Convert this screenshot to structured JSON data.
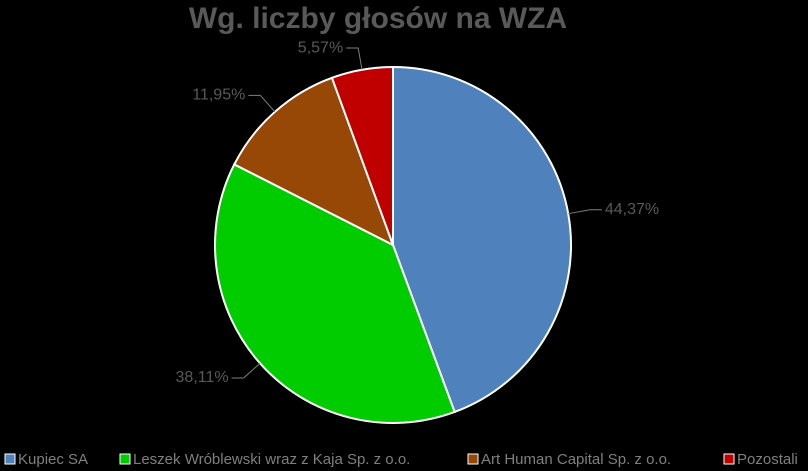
{
  "chart_data": {
    "type": "pie",
    "title": "Wg. liczby głosów na WZA",
    "categories": [
      "Kupiec SA",
      "Leszek Wróblewski wraz z Kaja Sp. z o.o.",
      "Art Human Capital Sp. z o.o.",
      "Pozostali"
    ],
    "values": [
      44.37,
      38.11,
      11.95,
      5.57
    ],
    "value_labels": [
      "44,37%",
      "38,11%",
      "11,95%",
      "5,57%"
    ],
    "colors": [
      "#4f81bd",
      "#00cc00",
      "#974706",
      "#c00000"
    ],
    "legend": "bottom"
  }
}
